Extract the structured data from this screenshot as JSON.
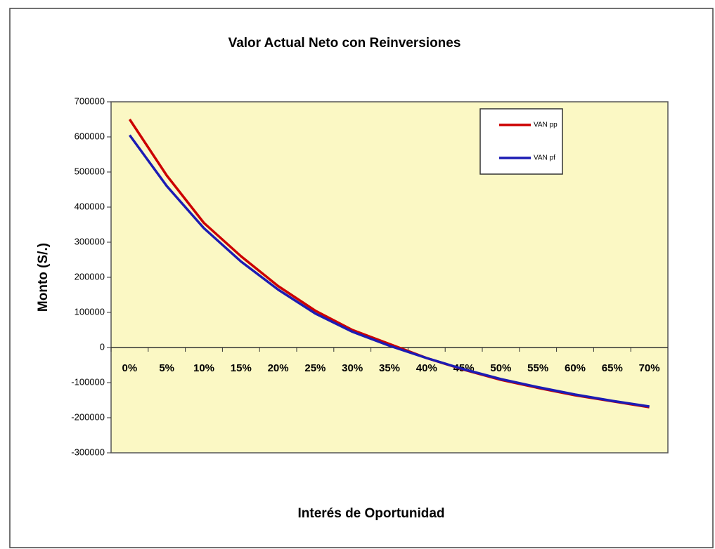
{
  "chart_data": {
    "type": "line",
    "title": "Valor Actual Neto con Reinversiones",
    "x_label": "Interés de Oportunidad",
    "y_label": "Monto (S/.)",
    "categories": [
      "0%",
      "5%",
      "10%",
      "15%",
      "20%",
      "25%",
      "30%",
      "35%",
      "40%",
      "45%",
      "50%",
      "55%",
      "60%",
      "65%",
      "70%"
    ],
    "series": [
      {
        "name": "VAN pp",
        "color": "#cc0000",
        "values": [
          650000,
          490000,
          355000,
          260000,
          175000,
          105000,
          50000,
          10000,
          -30000,
          -63000,
          -92000,
          -115000,
          -136000,
          -153000,
          -170000
        ]
      },
      {
        "name": "VAN pf",
        "color": "#1c1cb4",
        "values": [
          605000,
          460000,
          340000,
          245000,
          165000,
          97000,
          45000,
          5000,
          -30000,
          -62000,
          -90000,
          -113000,
          -134000,
          -152000,
          -168000
        ]
      }
    ],
    "ylim": [
      -300000,
      700000
    ],
    "yticks": [
      -300000,
      -200000,
      -100000,
      0,
      100000,
      200000,
      300000,
      400000,
      500000,
      600000,
      700000
    ],
    "legend": "upper right",
    "plot_background": "#fbf8c4"
  }
}
